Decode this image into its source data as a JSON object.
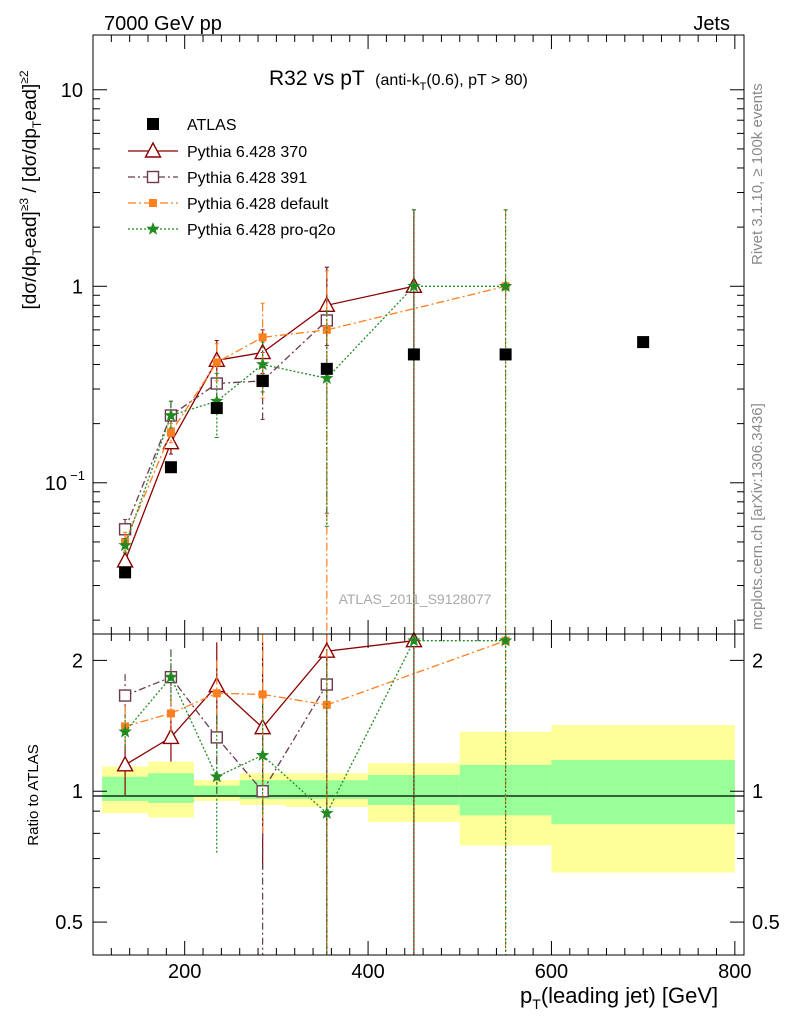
{
  "header": {
    "left": "7000 GeV pp",
    "right": "Jets"
  },
  "side_labels": {
    "top": "Rivet 3.1.10, ≥ 100k events",
    "bottom": "mcplots.cern.ch [arXiv:1306.3436]"
  },
  "watermark": "ATLAS_2011_S9128077",
  "colors": {
    "ratio_band_inner": "#99ff99",
    "ratio_band_outer": "#ffff99"
  },
  "chart_data": [
    {
      "type": "scatter",
      "title": "R32 vs pT",
      "title_suffix": "(anti-k",
      "title_sub": "T",
      "title_suffix2": "(0.6), pT > 80)",
      "ylabel": "[dσ/dp_T^lead]^{≥3} / [dσ/dp_T^lead]^{≥2}",
      "yscale": "log",
      "ylim": [
        0.017,
        19
      ],
      "xlim": [
        100,
        810
      ],
      "y_ticks": [
        "10^-1",
        "1",
        "10"
      ],
      "legend_position": "top-left",
      "series": [
        {
          "name": "ATLAS",
          "color": "#000000",
          "marker": "square",
          "points": [
            {
              "x": 135,
              "y": 0.035,
              "xerr": 25
            },
            {
              "x": 185,
              "y": 0.12,
              "xerr": 25
            },
            {
              "x": 235,
              "y": 0.24,
              "xerr": 25
            },
            {
              "x": 285,
              "y": 0.33,
              "xerr": 25
            },
            {
              "x": 355,
              "y": 0.38,
              "xerr": 45
            },
            {
              "x": 450,
              "y": 0.45,
              "xerr": 50
            },
            {
              "x": 550,
              "y": 0.45,
              "xerr": 50
            },
            {
              "x": 700,
              "y": 0.52,
              "xerr": 100
            }
          ]
        },
        {
          "name": "Pythia 6.428 370",
          "color": "#8b0000",
          "marker": "triangle",
          "dash": "",
          "points": [
            {
              "x": 135,
              "y": 0.04,
              "lo": 0.037,
              "hi": 0.044
            },
            {
              "x": 185,
              "y": 0.16,
              "lo": 0.14,
              "hi": 0.18
            },
            {
              "x": 235,
              "y": 0.42,
              "lo": 0.33,
              "hi": 0.53
            },
            {
              "x": 285,
              "y": 0.46,
              "lo": 0.36,
              "hi": 0.6
            },
            {
              "x": 355,
              "y": 0.8,
              "lo": 0.5,
              "hi": 1.25
            },
            {
              "x": 450,
              "y": 1.0,
              "lo": 0.005,
              "hi": 2.45
            }
          ]
        },
        {
          "name": "Pythia 6.428 391",
          "color": "#6b3a4f",
          "marker": "open-square",
          "dash": "7,3,2,3",
          "points": [
            {
              "x": 135,
              "y": 0.058,
              "lo": 0.052,
              "hi": 0.065
            },
            {
              "x": 185,
              "y": 0.22,
              "lo": 0.19,
              "hi": 0.26
            },
            {
              "x": 235,
              "y": 0.32,
              "lo": 0.25,
              "hi": 0.41
            },
            {
              "x": 285,
              "y": 0.33,
              "lo": 0.21,
              "hi": 0.46
            },
            {
              "x": 355,
              "y": 0.67,
              "lo": 0.07,
              "hi": 1.25
            }
          ]
        },
        {
          "name": "Pythia 6.428 default",
          "color": "#ff7f1e",
          "marker": "filled-square",
          "dash": "8,3,2,3",
          "points": [
            {
              "x": 135,
              "y": 0.05,
              "lo": 0.045,
              "hi": 0.056
            },
            {
              "x": 185,
              "y": 0.18,
              "lo": 0.16,
              "hi": 0.2
            },
            {
              "x": 235,
              "y": 0.41,
              "lo": 0.33,
              "hi": 0.51
            },
            {
              "x": 285,
              "y": 0.55,
              "lo": 0.27,
              "hi": 0.82
            },
            {
              "x": 355,
              "y": 0.6,
              "lo": 0.007,
              "hi": 1.2
            },
            {
              "x": 550,
              "y": 1.0,
              "lo": 0.005,
              "hi": 2.45
            }
          ]
        },
        {
          "name": "Pythia 6.428 pro-q2o",
          "color": "#228b22",
          "marker": "star",
          "dash": "2,2",
          "points": [
            {
              "x": 135,
              "y": 0.048,
              "lo": 0.044,
              "hi": 0.052
            },
            {
              "x": 185,
              "y": 0.22,
              "lo": 0.19,
              "hi": 0.26
            },
            {
              "x": 235,
              "y": 0.26,
              "lo": 0.17,
              "hi": 0.36
            },
            {
              "x": 285,
              "y": 0.4,
              "lo": 0.29,
              "hi": 0.52
            },
            {
              "x": 355,
              "y": 0.34,
              "lo": 0.06,
              "hi": 0.75
            },
            {
              "x": 450,
              "y": 1.0,
              "lo": 0.005,
              "hi": 2.45
            },
            {
              "x": 550,
              "y": 1.0,
              "lo": 0.005,
              "hi": 2.45
            }
          ]
        }
      ]
    },
    {
      "type": "scatter",
      "ylabel": "Ratio to ATLAS",
      "xlabel": "p_T(leading jet) [GeV]",
      "yscale": "log",
      "ylim": [
        0.42,
        2.3
      ],
      "xlim": [
        100,
        810
      ],
      "y_ticks": [
        0.5,
        1,
        2
      ],
      "x_ticks": [
        200,
        400,
        600,
        800
      ],
      "bands": [
        {
          "x0": 110,
          "x1": 160,
          "inner": [
            0.95,
            1.08
          ],
          "outer": [
            0.89,
            1.14
          ]
        },
        {
          "x0": 160,
          "x1": 210,
          "inner": [
            0.94,
            1.1
          ],
          "outer": [
            0.87,
            1.17
          ]
        },
        {
          "x0": 210,
          "x1": 260,
          "inner": [
            0.97,
            1.03
          ],
          "outer": [
            0.95,
            1.06
          ]
        },
        {
          "x0": 260,
          "x1": 310,
          "inner": [
            0.96,
            1.06
          ],
          "outer": [
            0.93,
            1.1
          ]
        },
        {
          "x0": 310,
          "x1": 400,
          "inner": [
            0.96,
            1.06
          ],
          "outer": [
            0.92,
            1.1
          ]
        },
        {
          "x0": 400,
          "x1": 500,
          "inner": [
            0.93,
            1.09
          ],
          "outer": [
            0.85,
            1.16
          ]
        },
        {
          "x0": 500,
          "x1": 600,
          "inner": [
            0.88,
            1.15
          ],
          "outer": [
            0.75,
            1.37
          ]
        },
        {
          "x0": 600,
          "x1": 800,
          "inner": [
            0.84,
            1.18
          ],
          "outer": [
            0.65,
            1.42
          ]
        }
      ],
      "series": [
        {
          "name": "Pythia 6.428 370",
          "points": [
            {
              "x": 135,
              "y": 1.15,
              "lo": 0.98,
              "hi": 1.32
            },
            {
              "x": 185,
              "y": 1.33,
              "lo": 1.17,
              "hi": 1.48
            },
            {
              "x": 235,
              "y": 1.75,
              "lo": 1.38,
              "hi": 2.2
            },
            {
              "x": 285,
              "y": 1.4,
              "lo": 0.66,
              "hi": 2.2
            },
            {
              "x": 355,
              "y": 2.1,
              "lo": 0.4,
              "hi": 2.3
            },
            {
              "x": 450,
              "y": 2.22,
              "lo": 0.4,
              "hi": 2.3
            }
          ]
        },
        {
          "name": "Pythia 6.428 391",
          "points": [
            {
              "x": 135,
              "y": 1.66,
              "lo": 1.47,
              "hi": 1.86
            },
            {
              "x": 185,
              "y": 1.83,
              "lo": 1.55,
              "hi": 2.12
            },
            {
              "x": 235,
              "y": 1.33,
              "lo": 0.98,
              "hi": 1.65
            },
            {
              "x": 285,
              "y": 1.0,
              "lo": 0.4,
              "hi": 1.4
            },
            {
              "x": 355,
              "y": 1.76,
              "lo": 0.4,
              "hi": 2.3
            }
          ]
        },
        {
          "name": "Pythia 6.428 default",
          "points": [
            {
              "x": 135,
              "y": 1.41,
              "lo": 1.27,
              "hi": 1.57
            },
            {
              "x": 185,
              "y": 1.51,
              "lo": 1.37,
              "hi": 1.65
            },
            {
              "x": 235,
              "y": 1.68,
              "lo": 1.36,
              "hi": 2.0
            },
            {
              "x": 285,
              "y": 1.67,
              "lo": 0.8,
              "hi": 2.3
            },
            {
              "x": 355,
              "y": 1.58,
              "lo": 0.4,
              "hi": 2.3
            },
            {
              "x": 550,
              "y": 2.22,
              "lo": 0.4,
              "hi": 2.3
            }
          ]
        },
        {
          "name": "Pythia 6.428 pro-q2o",
          "points": [
            {
              "x": 135,
              "y": 1.37,
              "lo": 1.25,
              "hi": 1.49
            },
            {
              "x": 185,
              "y": 1.83,
              "lo": 1.59,
              "hi": 2.1
            },
            {
              "x": 235,
              "y": 1.08,
              "lo": 0.72,
              "hi": 1.5
            },
            {
              "x": 285,
              "y": 1.21,
              "lo": 0.88,
              "hi": 1.59
            },
            {
              "x": 355,
              "y": 0.89,
              "lo": 0.4,
              "hi": 1.97
            },
            {
              "x": 450,
              "y": 2.22,
              "lo": 0.4,
              "hi": 2.3
            },
            {
              "x": 550,
              "y": 2.22,
              "lo": 0.4,
              "hi": 2.3
            }
          ]
        }
      ]
    }
  ]
}
